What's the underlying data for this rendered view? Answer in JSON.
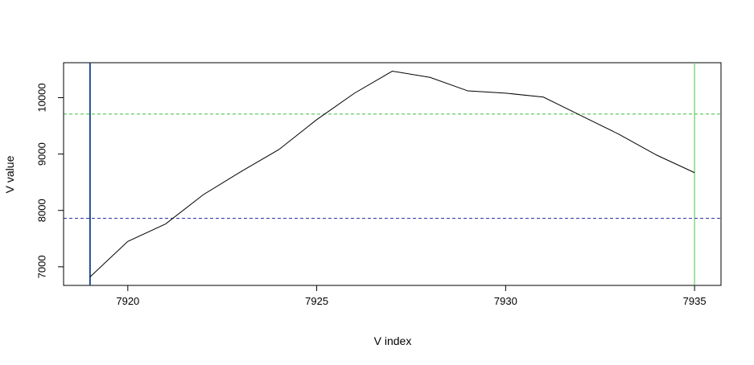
{
  "chart_data": {
    "type": "line",
    "title": "",
    "xlabel": "V index",
    "ylabel": "V value",
    "xlim": [
      7918.3,
      7935.7
    ],
    "ylim": [
      6670,
      10620
    ],
    "x_ticks": [
      7920,
      7925,
      7930,
      7935
    ],
    "y_ticks": [
      7000,
      8000,
      9000,
      10000
    ],
    "grid": false,
    "series": [
      {
        "color": "#000000",
        "x": [
          7919,
          7920,
          7921,
          7922,
          7923,
          7924,
          7925,
          7926,
          7927,
          7928,
          7929,
          7930,
          7931,
          7932,
          7933,
          7934,
          7935
        ],
        "y": [
          6820,
          7450,
          7760,
          8280,
          8690,
          9080,
          9610,
          10080,
          10470,
          10360,
          10120,
          10080,
          10010,
          9680,
          9350,
          8980,
          8670
        ]
      }
    ],
    "hlines": [
      {
        "y": 9710,
        "color": "#3fbf3f",
        "style": "dashed"
      },
      {
        "y": 7860,
        "color": "#3333aa",
        "style": "dashed"
      }
    ],
    "vlines": [
      {
        "x": 7919,
        "color": "#1f4e8c",
        "style": "solid"
      },
      {
        "x": 7935,
        "color": "#5fd35f",
        "style": "solid"
      }
    ]
  }
}
